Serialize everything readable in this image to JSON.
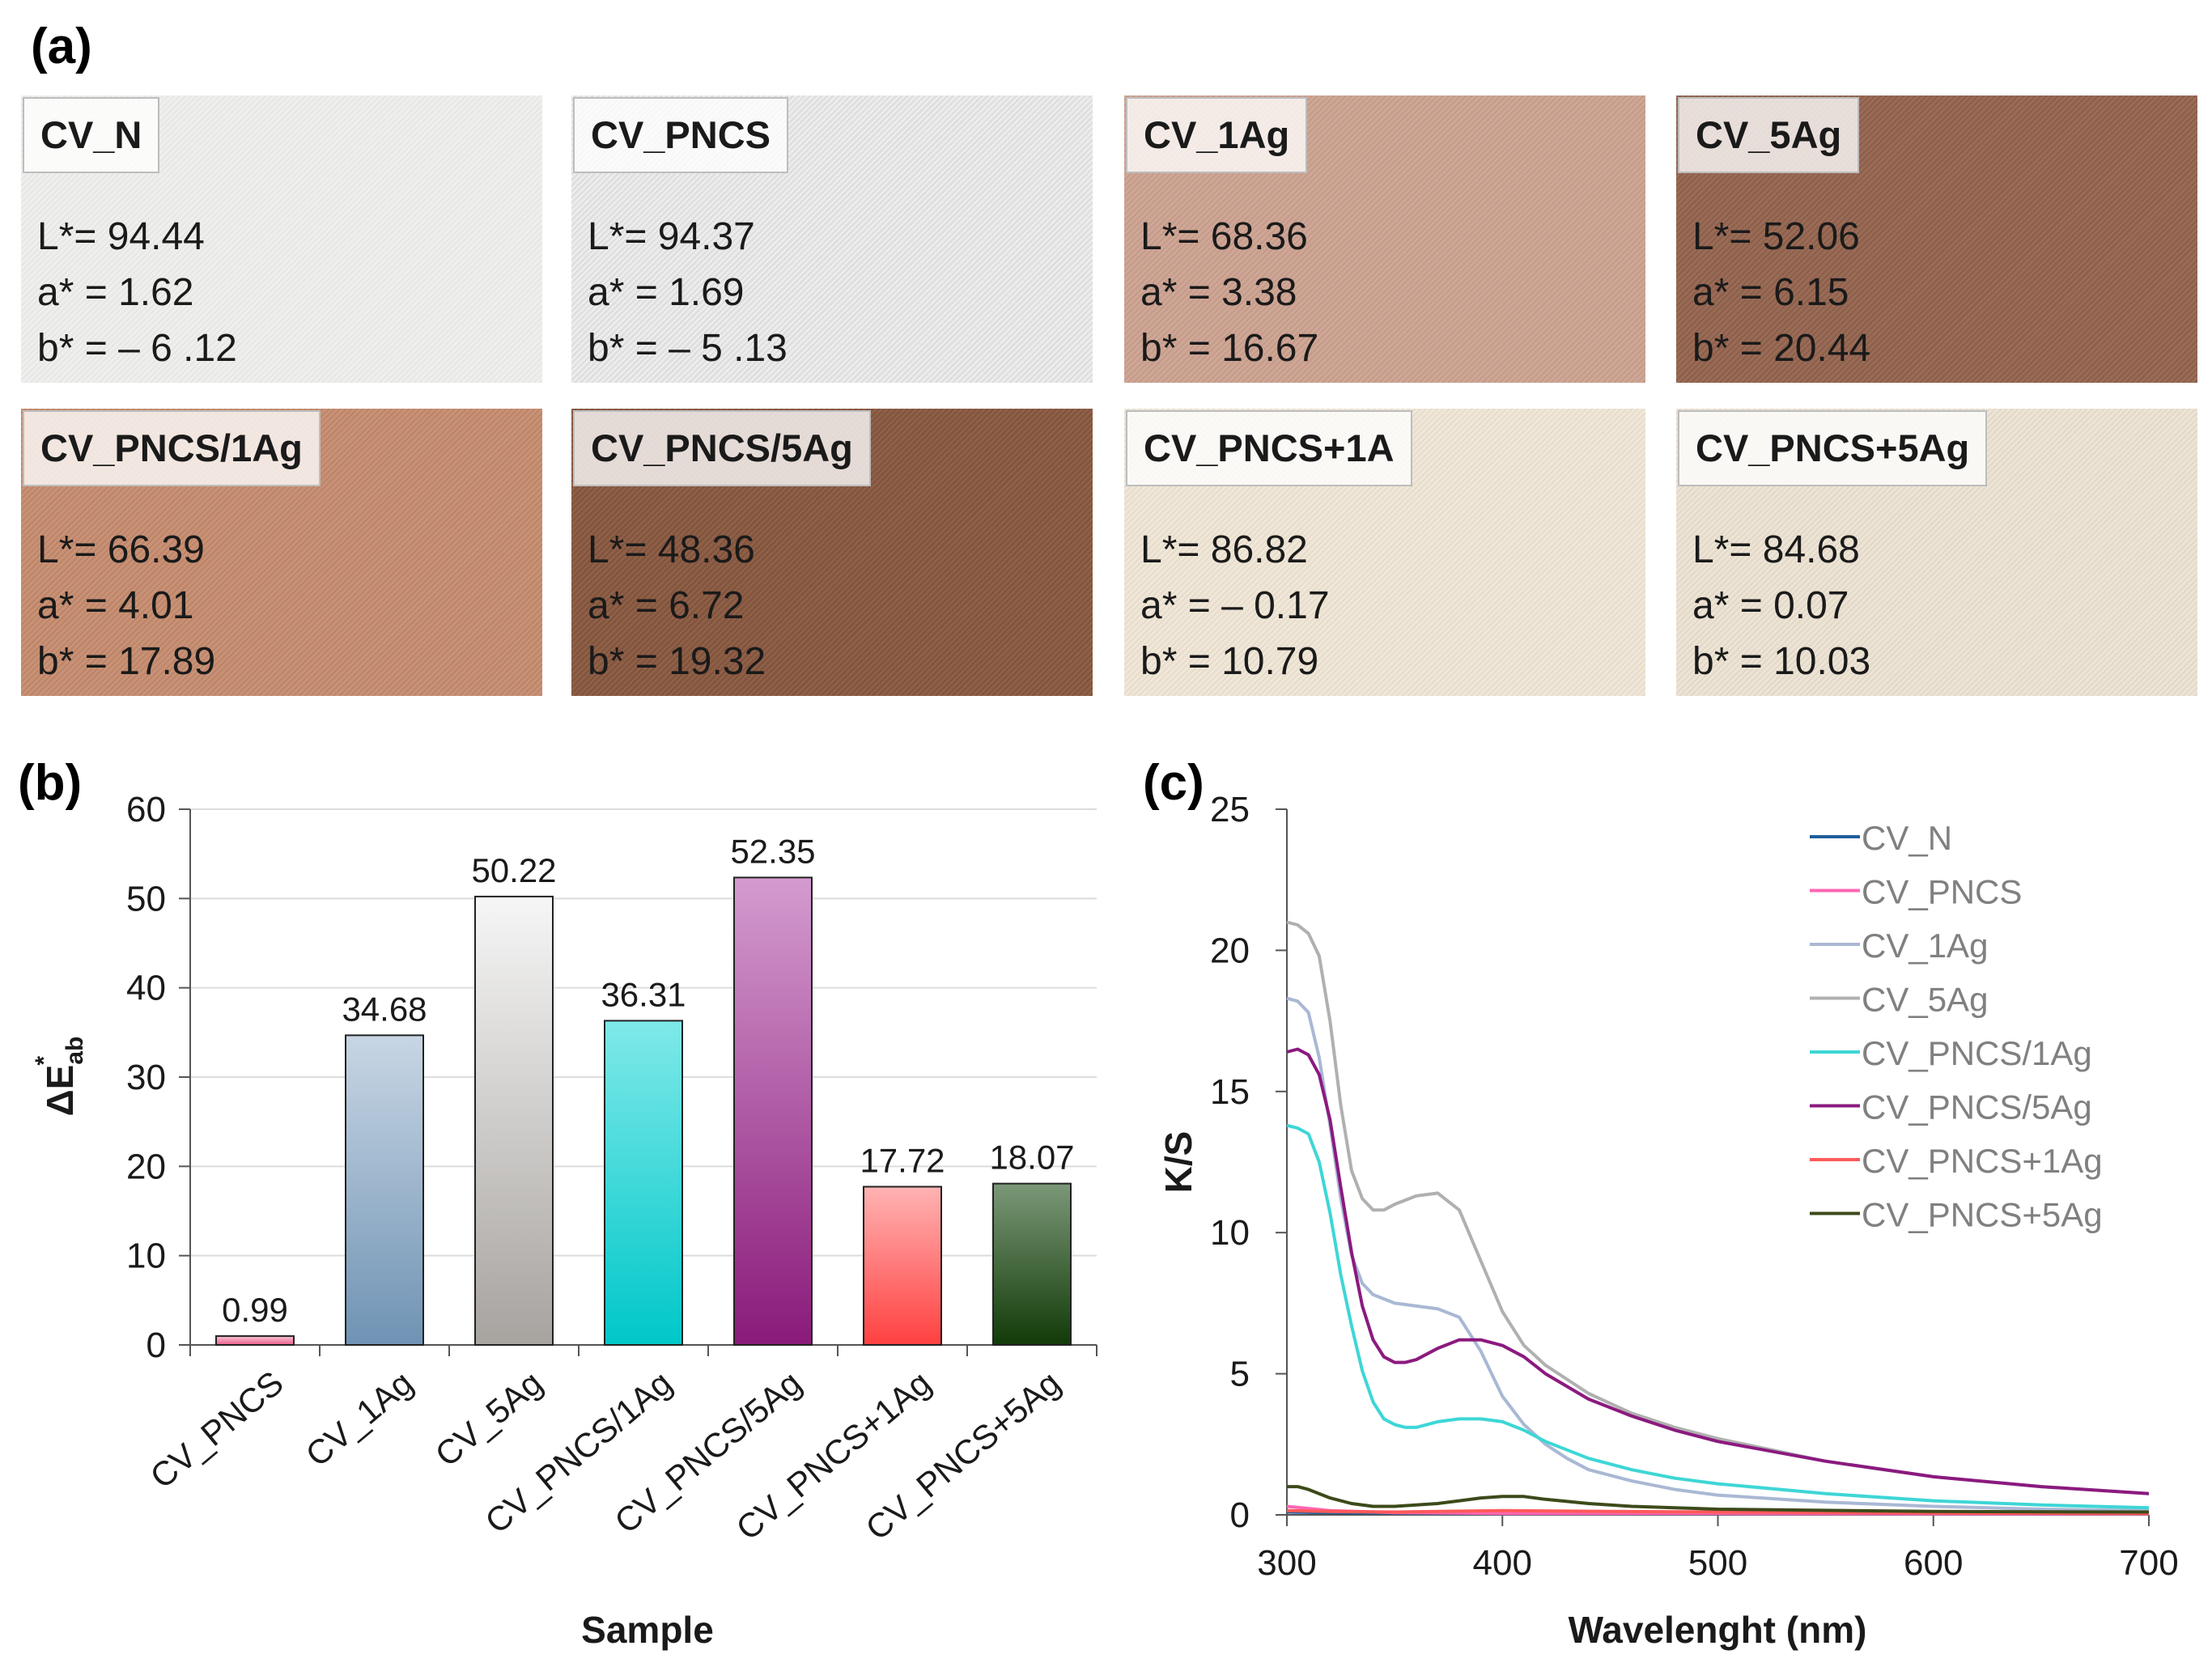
{
  "panel_a": {
    "label": "(a)",
    "swatches": [
      {
        "name": "CV_N",
        "L": "L*= 94.44",
        "a": "a* = 1.62",
        "b": "b* = – 6 .12",
        "color": "#efefed",
        "color2": "#e6e6e4"
      },
      {
        "name": "CV_PNCS",
        "L": "L*= 94.37",
        "a": "a* = 1.69",
        "b": "b* = – 5 .13",
        "color": "#ececec",
        "color2": "#dcdcdc"
      },
      {
        "name": "CV_1Ag",
        "L": "L*= 68.36",
        "a": "a* = 3.38",
        "b": "b* = 16.67",
        "color": "#cfa797",
        "color2": "#c49a89"
      },
      {
        "name": "CV_5Ag",
        "L": "L*= 52.06",
        "a": "a* = 6.15",
        "b": "b* = 20.44",
        "color": "#9a6c57",
        "color2": "#8b5e4a"
      },
      {
        "name": "CV_PNCS/1Ag",
        "L": "L*= 66.39",
        "a": "a* = 4.01",
        "b": "b* = 17.89",
        "color": "#c99276",
        "color2": "#bb8468"
      },
      {
        "name": "CV_PNCS/5Ag",
        "L": "L*= 48.36",
        "a": "a* = 6.72",
        "b": "b* = 19.32",
        "color": "#8f6048",
        "color2": "#7f523c"
      },
      {
        "name": "CV_PNCS+1A",
        "L": "L*= 86.82",
        "a": "a* = – 0.17",
        "b": "b* = 10.79",
        "color": "#f0e7d8",
        "color2": "#e5dccc"
      },
      {
        "name": "CV_PNCS+5Ag",
        "L": "L*= 84.68",
        "a": "a* = 0.07",
        "b": "b* = 10.03",
        "color": "#ede4d5",
        "color2": "#e2d8c8"
      }
    ]
  },
  "panel_b": {
    "label": "(b)"
  },
  "panel_c": {
    "label": "(c)"
  },
  "chart_data": [
    {
      "type": "bar",
      "title": "",
      "xlabel": "Sample",
      "ylabel": "ΔE*ab",
      "ylim": [
        0,
        60
      ],
      "yticks": [
        0,
        10,
        20,
        30,
        40,
        50,
        60
      ],
      "categories": [
        "CV_PNCS",
        "CV_1Ag",
        "CV_5Ag",
        "CV_PNCS/1Ag",
        "CV_PNCS/5Ag",
        "CV_PNCS+1Ag",
        "CV_PNCS+5Ag"
      ],
      "values": [
        0.99,
        34.68,
        50.22,
        36.31,
        52.35,
        17.72,
        18.07
      ],
      "data_labels": [
        "0.99",
        "34.68",
        "50.22",
        "36.31",
        "52.35",
        "17.72",
        "18.07"
      ],
      "bar_colors": [
        [
          "#f7c6d6",
          "#ea5c8a"
        ],
        [
          "#c8d6e4",
          "#6f93b4"
        ],
        [
          "#f6f6f6",
          "#a7a39f"
        ],
        [
          "#7fe9e9",
          "#00c7c9"
        ],
        [
          "#d49bcf",
          "#8a1a7a"
        ],
        [
          "#ffb3b3",
          "#ff4040"
        ],
        [
          "#7b9878",
          "#123a08"
        ]
      ],
      "grid": true
    },
    {
      "type": "line",
      "title": "",
      "xlabel": "Wavelenght (nm)",
      "ylabel": "K/S",
      "xlim": [
        300,
        700
      ],
      "ylim": [
        0,
        25
      ],
      "xticks": [
        300,
        400,
        500,
        600,
        700
      ],
      "yticks": [
        0,
        5,
        10,
        15,
        20,
        25
      ],
      "grid": false,
      "legend_position": "top-right",
      "series": [
        {
          "name": "CV_N",
          "color": "#1f5e9a",
          "x": [
            300,
            320,
            350,
            400,
            500,
            600,
            700
          ],
          "y": [
            0.1,
            0.08,
            0.06,
            0.05,
            0.05,
            0.04,
            0.04
          ]
        },
        {
          "name": "CV_PNCS",
          "color": "#ff66b3",
          "x": [
            300,
            320,
            350,
            400,
            500,
            600,
            700
          ],
          "y": [
            0.3,
            0.15,
            0.08,
            0.05,
            0.05,
            0.04,
            0.04
          ]
        },
        {
          "name": "CV_1Ag",
          "color": "#a9b8d4",
          "x": [
            300,
            305,
            310,
            315,
            320,
            325,
            330,
            335,
            340,
            350,
            360,
            370,
            380,
            390,
            400,
            410,
            420,
            430,
            440,
            460,
            480,
            500,
            550,
            600,
            650,
            700
          ],
          "y": [
            18.3,
            18.2,
            17.8,
            16.2,
            13.8,
            11.2,
            9.2,
            8.2,
            7.8,
            7.5,
            7.4,
            7.3,
            7.0,
            5.8,
            4.2,
            3.2,
            2.5,
            2.0,
            1.6,
            1.2,
            0.9,
            0.7,
            0.45,
            0.3,
            0.2,
            0.15
          ]
        },
        {
          "name": "CV_5Ag",
          "color": "#b0b0b0",
          "x": [
            300,
            305,
            310,
            315,
            320,
            325,
            330,
            335,
            340,
            345,
            350,
            360,
            370,
            380,
            390,
            400,
            410,
            420,
            440,
            460,
            480,
            500,
            550,
            600,
            650,
            700
          ],
          "y": [
            21.0,
            20.9,
            20.6,
            19.8,
            17.5,
            14.5,
            12.2,
            11.2,
            10.8,
            10.8,
            11.0,
            11.3,
            11.4,
            10.8,
            9.0,
            7.2,
            6.0,
            5.3,
            4.3,
            3.6,
            3.1,
            2.7,
            1.9,
            1.35,
            1.0,
            0.75
          ]
        },
        {
          "name": "CV_PNCS/1Ag",
          "color": "#3ed6d6",
          "x": [
            300,
            305,
            310,
            315,
            320,
            325,
            330,
            335,
            340,
            345,
            350,
            355,
            360,
            370,
            380,
            390,
            400,
            410,
            420,
            440,
            460,
            480,
            500,
            550,
            600,
            650,
            700
          ],
          "y": [
            13.8,
            13.7,
            13.5,
            12.5,
            10.7,
            8.5,
            6.7,
            5.1,
            4.0,
            3.4,
            3.2,
            3.1,
            3.1,
            3.3,
            3.4,
            3.4,
            3.3,
            3.0,
            2.6,
            2.0,
            1.6,
            1.3,
            1.1,
            0.75,
            0.5,
            0.35,
            0.25
          ]
        },
        {
          "name": "CV_PNCS/5Ag",
          "color": "#8b1a7f",
          "x": [
            300,
            305,
            310,
            315,
            320,
            325,
            330,
            335,
            340,
            345,
            350,
            355,
            360,
            370,
            380,
            390,
            400,
            410,
            420,
            440,
            460,
            480,
            500,
            550,
            600,
            650,
            700
          ],
          "y": [
            16.4,
            16.5,
            16.3,
            15.6,
            14.0,
            11.6,
            9.3,
            7.4,
            6.2,
            5.6,
            5.4,
            5.4,
            5.5,
            5.9,
            6.2,
            6.2,
            6.0,
            5.6,
            5.0,
            4.1,
            3.5,
            3.0,
            2.6,
            1.9,
            1.35,
            1.0,
            0.75
          ]
        },
        {
          "name": "CV_PNCS+1Ag",
          "color": "#ff5a5a",
          "x": [
            300,
            320,
            350,
            400,
            450,
            500,
            600,
            700
          ],
          "y": [
            0.15,
            0.12,
            0.1,
            0.15,
            0.12,
            0.1,
            0.07,
            0.05
          ]
        },
        {
          "name": "CV_PNCS+5Ag",
          "color": "#3d4a1a",
          "x": [
            300,
            305,
            310,
            320,
            330,
            340,
            350,
            360,
            370,
            380,
            390,
            400,
            410,
            420,
            440,
            460,
            500,
            600,
            700
          ],
          "y": [
            1.0,
            1.0,
            0.9,
            0.6,
            0.4,
            0.3,
            0.3,
            0.35,
            0.4,
            0.5,
            0.6,
            0.65,
            0.65,
            0.55,
            0.4,
            0.3,
            0.2,
            0.12,
            0.1
          ]
        }
      ]
    }
  ]
}
